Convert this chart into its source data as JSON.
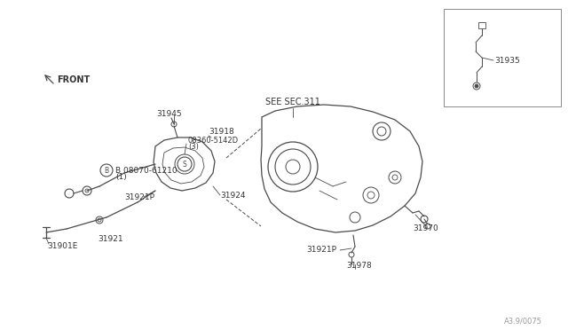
{
  "bg_color": "#ffffff",
  "line_color": "#4a4a4a",
  "text_color": "#333333",
  "part_number_footer": "A3.9/0075",
  "labels": {
    "front": "FRONT",
    "see_sec": "SEE SEC.311",
    "p31918": "31918",
    "p31945": "31945",
    "p08360": "08360-5142D",
    "p08360b": "(3)",
    "p08070": "B 08070-61210",
    "p08070b": "(1)",
    "p31921P_left": "31921P",
    "p31924": "31924",
    "p31921": "31921",
    "p31901E": "31901E",
    "p31921P_right": "31921P",
    "p31978": "31978",
    "p31970": "31970",
    "p31935": "31935"
  }
}
